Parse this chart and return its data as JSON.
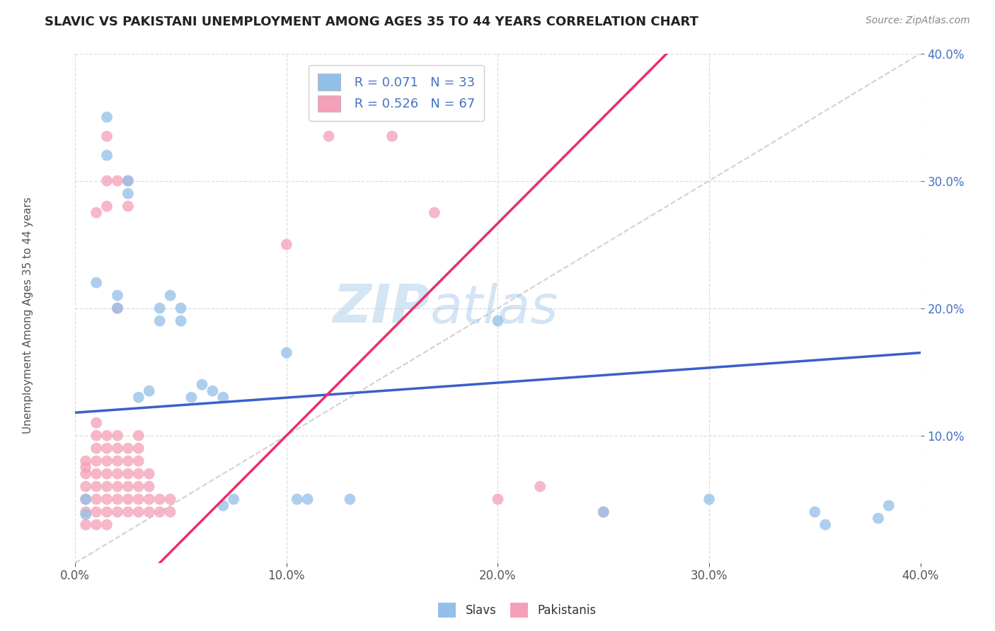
{
  "title": "SLAVIC VS PAKISTANI UNEMPLOYMENT AMONG AGES 35 TO 44 YEARS CORRELATION CHART",
  "source": "Source: ZipAtlas.com",
  "ylabel": "Unemployment Among Ages 35 to 44 years",
  "xlim": [
    0.0,
    0.4
  ],
  "ylim": [
    0.0,
    0.4
  ],
  "xtick_labels": [
    "0.0%",
    "10.0%",
    "20.0%",
    "30.0%",
    "40.0%"
  ],
  "xtick_values": [
    0.0,
    0.1,
    0.2,
    0.3,
    0.4
  ],
  "ytick_labels": [
    "10.0%",
    "20.0%",
    "30.0%",
    "40.0%"
  ],
  "ytick_values": [
    0.1,
    0.2,
    0.3,
    0.4
  ],
  "slavic_color": "#92c0e8",
  "pakistani_color": "#f4a0b8",
  "slavic_line_color": "#3a5fcd",
  "pakistani_line_color": "#e8306a",
  "diagonal_color": "#cccccc",
  "background_color": "#ffffff",
  "grid_color": "#dddddd",
  "watermark_zip": "ZIP",
  "watermark_atlas": "atlas",
  "legend_R_slavic": "R = 0.071",
  "legend_N_slavic": "N = 33",
  "legend_R_pakistani": "R = 0.526",
  "legend_N_pakistani": "N = 67",
  "slavic_line_x0": 0.0,
  "slavic_line_y0": 0.118,
  "slavic_line_x1": 0.4,
  "slavic_line_y1": 0.165,
  "pakistani_line_x0": 0.04,
  "pakistani_line_y0": 0.0,
  "pakistani_line_x1": 0.22,
  "pakistani_line_y1": 0.3,
  "slavic_scatter": [
    [
      0.005,
      0.038
    ],
    [
      0.005,
      0.05
    ],
    [
      0.01,
      0.22
    ],
    [
      0.015,
      0.32
    ],
    [
      0.015,
      0.35
    ],
    [
      0.02,
      0.21
    ],
    [
      0.02,
      0.2
    ],
    [
      0.025,
      0.3
    ],
    [
      0.025,
      0.29
    ],
    [
      0.03,
      0.13
    ],
    [
      0.035,
      0.135
    ],
    [
      0.04,
      0.2
    ],
    [
      0.04,
      0.19
    ],
    [
      0.045,
      0.21
    ],
    [
      0.05,
      0.2
    ],
    [
      0.05,
      0.19
    ],
    [
      0.055,
      0.13
    ],
    [
      0.06,
      0.14
    ],
    [
      0.065,
      0.135
    ],
    [
      0.07,
      0.13
    ],
    [
      0.07,
      0.045
    ],
    [
      0.075,
      0.05
    ],
    [
      0.1,
      0.165
    ],
    [
      0.105,
      0.05
    ],
    [
      0.11,
      0.05
    ],
    [
      0.13,
      0.05
    ],
    [
      0.2,
      0.19
    ],
    [
      0.25,
      0.04
    ],
    [
      0.3,
      0.05
    ],
    [
      0.35,
      0.04
    ],
    [
      0.355,
      0.03
    ],
    [
      0.38,
      0.035
    ],
    [
      0.385,
      0.045
    ]
  ],
  "pakistani_scatter": [
    [
      0.005,
      0.03
    ],
    [
      0.005,
      0.04
    ],
    [
      0.005,
      0.05
    ],
    [
      0.005,
      0.06
    ],
    [
      0.005,
      0.07
    ],
    [
      0.005,
      0.075
    ],
    [
      0.005,
      0.08
    ],
    [
      0.01,
      0.03
    ],
    [
      0.01,
      0.04
    ],
    [
      0.01,
      0.05
    ],
    [
      0.01,
      0.06
    ],
    [
      0.01,
      0.07
    ],
    [
      0.01,
      0.08
    ],
    [
      0.01,
      0.09
    ],
    [
      0.01,
      0.1
    ],
    [
      0.01,
      0.11
    ],
    [
      0.01,
      0.275
    ],
    [
      0.015,
      0.03
    ],
    [
      0.015,
      0.04
    ],
    [
      0.015,
      0.05
    ],
    [
      0.015,
      0.06
    ],
    [
      0.015,
      0.07
    ],
    [
      0.015,
      0.08
    ],
    [
      0.015,
      0.09
    ],
    [
      0.015,
      0.1
    ],
    [
      0.015,
      0.28
    ],
    [
      0.015,
      0.3
    ],
    [
      0.015,
      0.335
    ],
    [
      0.02,
      0.04
    ],
    [
      0.02,
      0.05
    ],
    [
      0.02,
      0.06
    ],
    [
      0.02,
      0.07
    ],
    [
      0.02,
      0.08
    ],
    [
      0.02,
      0.09
    ],
    [
      0.02,
      0.1
    ],
    [
      0.02,
      0.2
    ],
    [
      0.02,
      0.3
    ],
    [
      0.025,
      0.04
    ],
    [
      0.025,
      0.05
    ],
    [
      0.025,
      0.06
    ],
    [
      0.025,
      0.07
    ],
    [
      0.025,
      0.08
    ],
    [
      0.025,
      0.09
    ],
    [
      0.025,
      0.28
    ],
    [
      0.025,
      0.3
    ],
    [
      0.03,
      0.04
    ],
    [
      0.03,
      0.05
    ],
    [
      0.03,
      0.06
    ],
    [
      0.03,
      0.07
    ],
    [
      0.03,
      0.08
    ],
    [
      0.03,
      0.09
    ],
    [
      0.03,
      0.1
    ],
    [
      0.035,
      0.04
    ],
    [
      0.035,
      0.05
    ],
    [
      0.035,
      0.06
    ],
    [
      0.035,
      0.07
    ],
    [
      0.04,
      0.04
    ],
    [
      0.04,
      0.05
    ],
    [
      0.045,
      0.04
    ],
    [
      0.045,
      0.05
    ],
    [
      0.1,
      0.25
    ],
    [
      0.12,
      0.335
    ],
    [
      0.15,
      0.335
    ],
    [
      0.17,
      0.275
    ],
    [
      0.2,
      0.05
    ],
    [
      0.22,
      0.06
    ],
    [
      0.25,
      0.04
    ]
  ]
}
